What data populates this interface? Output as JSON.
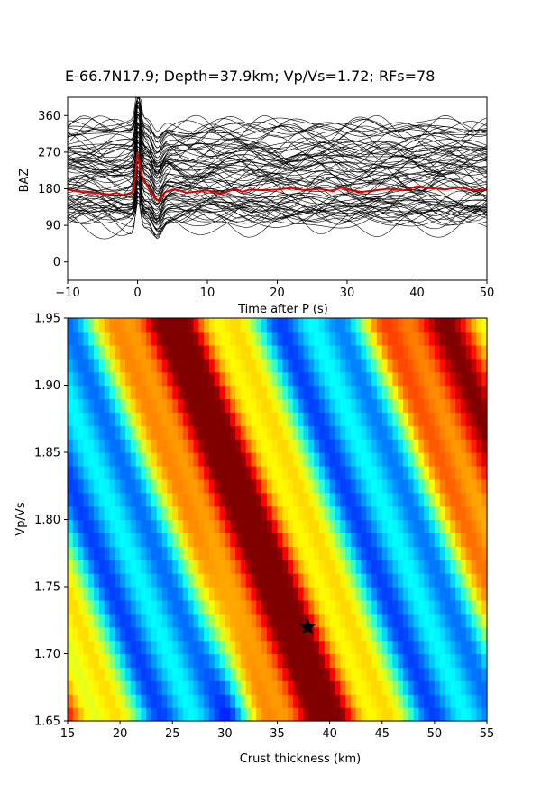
{
  "figure_title": "E-66.7N17.9; Depth=37.9km; Vp/Vs=1.72; RFs=78",
  "chart_data": [
    {
      "type": "line",
      "panel": "receiver-functions",
      "xlabel": "Time after P (s)",
      "ylabel": "BAZ",
      "xlim": [
        -10,
        50
      ],
      "ylim": [
        -45,
        405
      ],
      "xticks": [
        -10,
        0,
        10,
        20,
        30,
        40,
        50
      ],
      "yticks": [
        0,
        90,
        180,
        270,
        360
      ],
      "trace_count": 78,
      "trace_color": "#000000",
      "stack_color": "#e00000",
      "stack": {
        "x": [
          -10,
          -8,
          -6,
          -4,
          -3,
          -2,
          -1,
          -0.5,
          0,
          0.3,
          0.7,
          1,
          1.5,
          2,
          2.5,
          3,
          3.5,
          4,
          5,
          6,
          7,
          8,
          10,
          12,
          14,
          15,
          16,
          18,
          20,
          22,
          24,
          26,
          28,
          29,
          30,
          32,
          34,
          36,
          38,
          40,
          42,
          44,
          46,
          48,
          50
        ],
        "y": [
          178,
          172,
          170,
          166,
          170,
          164,
          168,
          178,
          270,
          238,
          210,
          200,
          184,
          170,
          158,
          150,
          160,
          172,
          178,
          176,
          170,
          172,
          176,
          168,
          180,
          172,
          178,
          176,
          178,
          182,
          176,
          180,
          174,
          184,
          178,
          172,
          176,
          180,
          176,
          186,
          182,
          178,
          184,
          176,
          178
        ]
      }
    },
    {
      "type": "heatmap",
      "panel": "h-kappa",
      "xlabel": "Crust thickness (km)",
      "ylabel": "Vp/Vs",
      "xlim": [
        15,
        55
      ],
      "ylim": [
        1.65,
        1.95
      ],
      "xticks": [
        15,
        20,
        25,
        30,
        35,
        40,
        45,
        50,
        55
      ],
      "yticks": [
        "1.65",
        "1.70",
        "1.75",
        "1.80",
        "1.85",
        "1.90",
        "1.95"
      ],
      "colormap": "jet",
      "best_fit": {
        "thickness": 37.9,
        "vpvs": 1.72
      }
    }
  ]
}
